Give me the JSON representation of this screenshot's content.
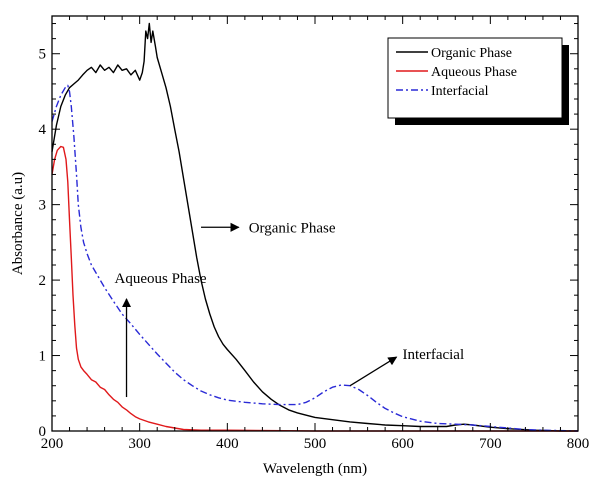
{
  "chart_data": {
    "type": "line",
    "xlabel": "Wavelength (nm)",
    "ylabel": "Absorbance (a.u)",
    "xlim": [
      200,
      800
    ],
    "ylim": [
      0,
      5.5
    ],
    "x_ticks": [
      200,
      300,
      400,
      500,
      600,
      700,
      800
    ],
    "y_ticks": [
      0,
      1,
      2,
      3,
      4,
      5
    ],
    "grid": false,
    "legend_position": "top-right",
    "series": [
      {
        "name": "Organic Phase",
        "color": "#000000",
        "dash": "solid",
        "points": [
          [
            200,
            3.7
          ],
          [
            205,
            4.05
          ],
          [
            210,
            4.3
          ],
          [
            215,
            4.45
          ],
          [
            220,
            4.55
          ],
          [
            225,
            4.6
          ],
          [
            230,
            4.65
          ],
          [
            235,
            4.72
          ],
          [
            240,
            4.78
          ],
          [
            245,
            4.82
          ],
          [
            250,
            4.75
          ],
          [
            255,
            4.85
          ],
          [
            260,
            4.78
          ],
          [
            265,
            4.82
          ],
          [
            270,
            4.75
          ],
          [
            275,
            4.85
          ],
          [
            280,
            4.78
          ],
          [
            285,
            4.8
          ],
          [
            290,
            4.72
          ],
          [
            295,
            4.78
          ],
          [
            300,
            4.65
          ],
          [
            303,
            4.75
          ],
          [
            305,
            4.9
          ],
          [
            307,
            5.3
          ],
          [
            309,
            5.2
          ],
          [
            311,
            5.4
          ],
          [
            313,
            5.15
          ],
          [
            315,
            5.3
          ],
          [
            318,
            5.1
          ],
          [
            320,
            4.95
          ],
          [
            325,
            4.75
          ],
          [
            330,
            4.55
          ],
          [
            335,
            4.3
          ],
          [
            340,
            4.0
          ],
          [
            345,
            3.7
          ],
          [
            350,
            3.35
          ],
          [
            355,
            3.0
          ],
          [
            360,
            2.65
          ],
          [
            365,
            2.3
          ],
          [
            370,
            2.0
          ],
          [
            375,
            1.75
          ],
          [
            380,
            1.55
          ],
          [
            385,
            1.38
          ],
          [
            390,
            1.25
          ],
          [
            395,
            1.15
          ],
          [
            400,
            1.08
          ],
          [
            410,
            0.95
          ],
          [
            420,
            0.8
          ],
          [
            430,
            0.65
          ],
          [
            440,
            0.52
          ],
          [
            450,
            0.42
          ],
          [
            460,
            0.34
          ],
          [
            470,
            0.28
          ],
          [
            480,
            0.24
          ],
          [
            490,
            0.21
          ],
          [
            500,
            0.18
          ],
          [
            520,
            0.15
          ],
          [
            540,
            0.12
          ],
          [
            560,
            0.1
          ],
          [
            580,
            0.08
          ],
          [
            600,
            0.07
          ],
          [
            620,
            0.06
          ],
          [
            640,
            0.06
          ],
          [
            650,
            0.06
          ],
          [
            660,
            0.08
          ],
          [
            670,
            0.09
          ],
          [
            680,
            0.08
          ],
          [
            700,
            0.05
          ],
          [
            720,
            0.03
          ],
          [
            750,
            0.01
          ],
          [
            780,
            0.0
          ],
          [
            800,
            0.0
          ]
        ]
      },
      {
        "name": "Aqueous Phase",
        "color": "#e0191b",
        "dash": "solid",
        "points": [
          [
            200,
            3.4
          ],
          [
            203,
            3.6
          ],
          [
            206,
            3.72
          ],
          [
            210,
            3.77
          ],
          [
            213,
            3.76
          ],
          [
            216,
            3.6
          ],
          [
            218,
            3.3
          ],
          [
            220,
            2.8
          ],
          [
            222,
            2.3
          ],
          [
            224,
            1.8
          ],
          [
            226,
            1.4
          ],
          [
            228,
            1.1
          ],
          [
            230,
            0.95
          ],
          [
            233,
            0.85
          ],
          [
            236,
            0.8
          ],
          [
            240,
            0.75
          ],
          [
            245,
            0.68
          ],
          [
            250,
            0.65
          ],
          [
            255,
            0.58
          ],
          [
            260,
            0.55
          ],
          [
            265,
            0.48
          ],
          [
            270,
            0.42
          ],
          [
            275,
            0.38
          ],
          [
            280,
            0.32
          ],
          [
            285,
            0.28
          ],
          [
            290,
            0.23
          ],
          [
            295,
            0.19
          ],
          [
            300,
            0.16
          ],
          [
            310,
            0.12
          ],
          [
            320,
            0.09
          ],
          [
            330,
            0.06
          ],
          [
            340,
            0.04
          ],
          [
            350,
            0.02
          ],
          [
            370,
            0.01
          ],
          [
            400,
            0.01
          ],
          [
            500,
            0.0
          ],
          [
            600,
            0.0
          ],
          [
            700,
            0.0
          ],
          [
            800,
            0.0
          ]
        ]
      },
      {
        "name": "Interfacial",
        "color": "#2a2ad6",
        "dash": "dashdot",
        "points": [
          [
            200,
            4.1
          ],
          [
            205,
            4.3
          ],
          [
            210,
            4.45
          ],
          [
            215,
            4.55
          ],
          [
            218,
            4.58
          ],
          [
            220,
            4.5
          ],
          [
            222,
            4.3
          ],
          [
            225,
            3.9
          ],
          [
            228,
            3.4
          ],
          [
            230,
            3.0
          ],
          [
            233,
            2.7
          ],
          [
            236,
            2.5
          ],
          [
            240,
            2.35
          ],
          [
            245,
            2.2
          ],
          [
            250,
            2.1
          ],
          [
            260,
            1.9
          ],
          [
            270,
            1.72
          ],
          [
            280,
            1.55
          ],
          [
            290,
            1.42
          ],
          [
            300,
            1.28
          ],
          [
            310,
            1.15
          ],
          [
            320,
            1.02
          ],
          [
            330,
            0.9
          ],
          [
            340,
            0.78
          ],
          [
            350,
            0.68
          ],
          [
            360,
            0.6
          ],
          [
            370,
            0.53
          ],
          [
            380,
            0.48
          ],
          [
            390,
            0.44
          ],
          [
            400,
            0.41
          ],
          [
            420,
            0.38
          ],
          [
            440,
            0.36
          ],
          [
            460,
            0.35
          ],
          [
            480,
            0.35
          ],
          [
            490,
            0.38
          ],
          [
            500,
            0.44
          ],
          [
            510,
            0.52
          ],
          [
            520,
            0.58
          ],
          [
            530,
            0.61
          ],
          [
            540,
            0.6
          ],
          [
            550,
            0.55
          ],
          [
            560,
            0.47
          ],
          [
            570,
            0.38
          ],
          [
            580,
            0.3
          ],
          [
            590,
            0.24
          ],
          [
            600,
            0.19
          ],
          [
            620,
            0.13
          ],
          [
            640,
            0.1
          ],
          [
            660,
            0.09
          ],
          [
            680,
            0.08
          ],
          [
            700,
            0.06
          ],
          [
            720,
            0.04
          ],
          [
            740,
            0.02
          ],
          [
            760,
            0.01
          ],
          [
            800,
            0.0
          ]
        ]
      }
    ],
    "annotations": [
      {
        "text": "Organic Phase",
        "arrow_from": [
          370,
          2.7
        ],
        "arrow_to": [
          413,
          2.7
        ]
      },
      {
        "text": "Aqueous Phase",
        "arrow_from": [
          285,
          0.45
        ],
        "arrow_to": [
          285,
          1.75
        ]
      },
      {
        "text": "Interfacial",
        "arrow_from": [
          540,
          0.6
        ],
        "arrow_to": [
          593,
          0.98
        ]
      }
    ]
  }
}
